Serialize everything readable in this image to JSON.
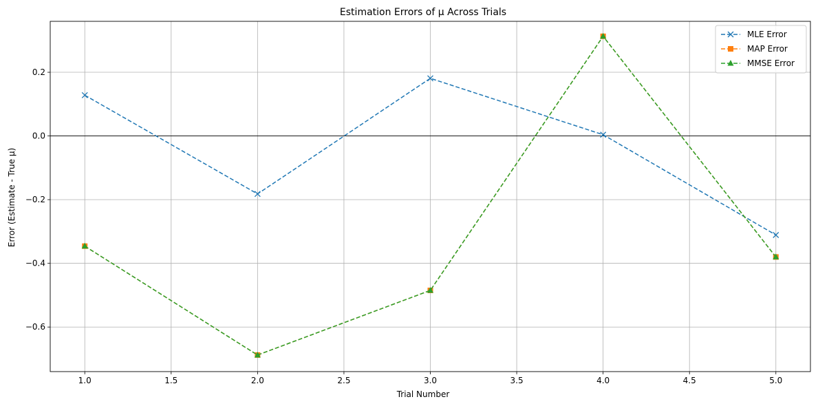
{
  "chart_data": {
    "type": "line",
    "title": "Estimation Errors of μ Across Trials",
    "xlabel": "Trial Number",
    "ylabel": "Error (Estimate - True μ)",
    "x": [
      1,
      2,
      3,
      4,
      5
    ],
    "xlim": [
      0.8,
      5.2
    ],
    "ylim": [
      -0.74,
      0.36
    ],
    "xticks": [
      1.0,
      1.5,
      2.0,
      2.5,
      3.0,
      3.5,
      4.0,
      4.5,
      5.0
    ],
    "xtick_labels": [
      "1.0",
      "1.5",
      "2.0",
      "2.5",
      "3.0",
      "3.5",
      "4.0",
      "4.5",
      "5.0"
    ],
    "yticks": [
      -0.6,
      -0.4,
      -0.2,
      0.0,
      0.2
    ],
    "ytick_labels": [
      "−0.6",
      "−0.4",
      "−0.2",
      "0.0",
      "0.2"
    ],
    "grid": true,
    "reference_line_y": 0.0,
    "legend_position": "top-right",
    "series": [
      {
        "name": "MLE Error",
        "values": [
          0.128,
          -0.182,
          0.181,
          0.004,
          -0.311
        ],
        "color": "#1f77b4",
        "marker": "x",
        "linestyle": "dashed"
      },
      {
        "name": "MAP Error",
        "values": [
          -0.346,
          -0.688,
          -0.485,
          0.313,
          -0.38
        ],
        "color": "#ff7f0e",
        "marker": "square",
        "linestyle": "dashed"
      },
      {
        "name": "MMSE Error",
        "values": [
          -0.346,
          -0.688,
          -0.485,
          0.313,
          -0.38
        ],
        "color": "#2ca02c",
        "marker": "triangle",
        "linestyle": "dashed"
      }
    ]
  }
}
